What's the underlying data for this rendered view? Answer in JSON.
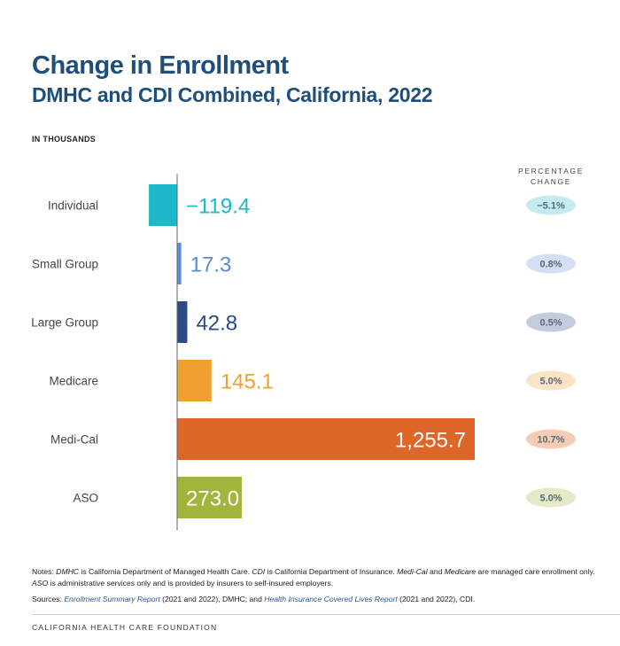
{
  "header": {
    "title": "Change in Enrollment",
    "subtitle": "DMHC and CDI Combined, California, 2022",
    "units": "IN THOUSANDS",
    "pct_header_line1": "PERCENTAGE",
    "pct_header_line2": "CHANGE"
  },
  "chart_data": {
    "type": "bar",
    "orientation": "horizontal",
    "title": "Change in Enrollment",
    "subtitle": "DMHC and CDI Combined, California, 2022",
    "units": "IN THOUSANDS",
    "categories": [
      "Individual",
      "Small Group",
      "Large Group",
      "Medicare",
      "Medi-Cal",
      "ASO"
    ],
    "values": [
      -119.4,
      17.3,
      42.8,
      145.1,
      1255.7,
      273.0
    ],
    "value_labels": [
      "−119.4",
      "17.3",
      "42.8",
      "145.1",
      "1,255.7",
      "273.0"
    ],
    "percentage_change": [
      "−5.1%",
      "0.8%",
      "0.5%",
      "5.0%",
      "10.7%",
      "5.0%"
    ],
    "colors": [
      "#1ab8c9",
      "#5b8ad6",
      "#2b4a86",
      "#f0a030",
      "#dd6628",
      "#a2b53a"
    ],
    "badge_colors": [
      "#c4ecef",
      "#d2dff5",
      "#c3cbdc",
      "#fbe3c5",
      "#f6ccb6",
      "#e4ebc6"
    ],
    "label_text_colors": [
      "#1ab8c9",
      "#5b8ad6",
      "#2b4a86",
      "#f0a030",
      "#ffffff",
      "#ffffff"
    ],
    "label_inside": [
      false,
      false,
      false,
      false,
      true,
      true
    ],
    "xlim": [
      -119.4,
      1255.7
    ],
    "grid": false
  },
  "notes": {
    "n1": "Notes: ",
    "n2": "DMHC",
    "n3": " is California Department of Managed Health Care. ",
    "n4": "CDI",
    "n5": " is California Department of Insurance. ",
    "n6": "Medi-Cal",
    "n7": " and ",
    "n8": "Medicare",
    "n9": " are managed care enrollment only. ",
    "n10": "ASO",
    "n11": " is administrative services only and is provided by insurers to self-insured employers.",
    "s1": "Sources: ",
    "s2": "Enrollment Summary Report",
    "s3": " (2021 and 2022), DMHC; and ",
    "s4": "Health Insurance Covered Lives Report",
    "s5": " (2021 and 2022), CDI."
  },
  "footer": {
    "org": "CALIFORNIA HEALTH CARE FOUNDATION"
  }
}
